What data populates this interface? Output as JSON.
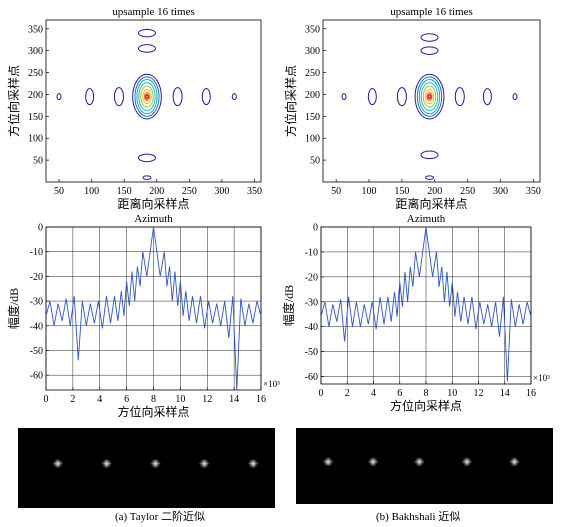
{
  "figure": {
    "captions": [
      "(a) Taylor 二阶近似",
      "(b) Bakhshali 近似"
    ]
  },
  "chart_data": [
    {
      "type": "contour",
      "panel": "a-contour",
      "title": "upsample 16 times",
      "xlabel": "距离向采样点",
      "ylabel": "方位向采样点",
      "xlim": [
        30,
        360
      ],
      "ylim": [
        0,
        370
      ],
      "xticks": [
        50,
        100,
        150,
        200,
        250,
        300,
        350
      ],
      "yticks": [
        50,
        100,
        150,
        200,
        250,
        300,
        350
      ],
      "grid": false,
      "peak": {
        "x": 185,
        "y": 195
      },
      "side_lobes_x": [
        50,
        97,
        142,
        232,
        276,
        319
      ],
      "side_lobes_y": [
        55,
        10,
        340,
        305
      ],
      "colors": [
        "#d62728",
        "#ff7f0e",
        "#e6c619",
        "#9acd32",
        "#17becf",
        "#1f77b4",
        "#1f1f9f"
      ]
    },
    {
      "type": "contour",
      "panel": "b-contour",
      "title": "upsample 16 times",
      "xlabel": "距离向采样点",
      "ylabel": "方位向采样点",
      "xlim": [
        30,
        360
      ],
      "ylim": [
        0,
        370
      ],
      "xticks": [
        50,
        100,
        150,
        200,
        250,
        300,
        350
      ],
      "yticks": [
        50,
        100,
        150,
        200,
        250,
        300,
        350
      ],
      "grid": false,
      "peak": {
        "x": 192,
        "y": 195
      },
      "side_lobes_x": [
        62,
        105,
        150,
        238,
        280,
        322
      ],
      "side_lobes_y": [
        62,
        10,
        330,
        300
      ],
      "colors": [
        "#d62728",
        "#ff7f0e",
        "#e6c619",
        "#9acd32",
        "#17becf",
        "#1f77b4",
        "#1f1f9f"
      ]
    },
    {
      "type": "line",
      "panel": "a-profile",
      "title": "Azimuth",
      "xlabel": "方位向采样点",
      "ylabel": "幅度/dB",
      "x_multiplier": "×10³",
      "xlim": [
        0,
        16
      ],
      "ylim": [
        -66,
        0
      ],
      "xticks": [
        0,
        2,
        4,
        6,
        8,
        10,
        12,
        14,
        16
      ],
      "yticks": [
        0,
        -10,
        -20,
        -30,
        -40,
        -50,
        -60
      ],
      "grid": true,
      "line_color": "#2f55c6",
      "mainlobe_center": 8,
      "sidelobe_peaks": [
        {
          "x": 0.3,
          "y": -30
        },
        {
          "x": 0.9,
          "y": -31
        },
        {
          "x": 1.5,
          "y": -29
        },
        {
          "x": 2.1,
          "y": -28
        },
        {
          "x": 2.7,
          "y": -30
        },
        {
          "x": 3.3,
          "y": -31
        },
        {
          "x": 3.9,
          "y": -30
        },
        {
          "x": 4.5,
          "y": -28
        },
        {
          "x": 5.1,
          "y": -28
        },
        {
          "x": 5.6,
          "y": -26
        },
        {
          "x": 6.0,
          "y": -22
        },
        {
          "x": 6.4,
          "y": -18
        },
        {
          "x": 6.8,
          "y": -16
        },
        {
          "x": 7.2,
          "y": -10
        },
        {
          "x": 8.0,
          "y": 0
        },
        {
          "x": 8.8,
          "y": -10
        },
        {
          "x": 9.2,
          "y": -16
        },
        {
          "x": 9.6,
          "y": -18
        },
        {
          "x": 10.0,
          "y": -22
        },
        {
          "x": 10.4,
          "y": -26
        },
        {
          "x": 10.9,
          "y": -28
        },
        {
          "x": 11.5,
          "y": -28
        },
        {
          "x": 12.1,
          "y": -30
        },
        {
          "x": 12.7,
          "y": -31
        },
        {
          "x": 13.3,
          "y": -30
        },
        {
          "x": 13.9,
          "y": -28
        },
        {
          "x": 14.5,
          "y": -29
        },
        {
          "x": 15.1,
          "y": -31
        },
        {
          "x": 15.7,
          "y": -30
        }
      ],
      "nulls": [
        {
          "x": 0.6,
          "y": -40
        },
        {
          "x": 1.2,
          "y": -38
        },
        {
          "x": 1.8,
          "y": -40
        },
        {
          "x": 2.4,
          "y": -54
        },
        {
          "x": 3.0,
          "y": -40
        },
        {
          "x": 3.6,
          "y": -39
        },
        {
          "x": 4.2,
          "y": -41
        },
        {
          "x": 4.8,
          "y": -39
        },
        {
          "x": 5.35,
          "y": -38
        },
        {
          "x": 5.8,
          "y": -36
        },
        {
          "x": 6.2,
          "y": -32
        },
        {
          "x": 6.6,
          "y": -30
        },
        {
          "x": 7.0,
          "y": -24
        },
        {
          "x": 7.5,
          "y": -20
        },
        {
          "x": 8.5,
          "y": -20
        },
        {
          "x": 9.0,
          "y": -24
        },
        {
          "x": 9.4,
          "y": -30
        },
        {
          "x": 9.8,
          "y": -32
        },
        {
          "x": 10.2,
          "y": -36
        },
        {
          "x": 10.65,
          "y": -38
        },
        {
          "x": 11.2,
          "y": -39
        },
        {
          "x": 11.8,
          "y": -41
        },
        {
          "x": 12.4,
          "y": -39
        },
        {
          "x": 13.0,
          "y": -40
        },
        {
          "x": 13.6,
          "y": -45
        },
        {
          "x": 14.2,
          "y": -66
        },
        {
          "x": 14.8,
          "y": -40
        },
        {
          "x": 15.4,
          "y": -39
        },
        {
          "x": 16.0,
          "y": -36
        }
      ]
    },
    {
      "type": "line",
      "panel": "b-profile",
      "title": "Azimuth",
      "xlabel": "方位向采样点",
      "ylabel": "幅度/dB",
      "x_multiplier": "×10³",
      "xlim": [
        0,
        16
      ],
      "ylim": [
        -63,
        0
      ],
      "xticks": [
        0,
        2,
        4,
        6,
        8,
        10,
        12,
        14,
        16
      ],
      "yticks": [
        0,
        -10,
        -20,
        -30,
        -40,
        -50,
        -60
      ],
      "grid": true,
      "line_color": "#2f55c6",
      "mainlobe_center": 8,
      "sidelobe_peaks": [
        {
          "x": 0.3,
          "y": -30
        },
        {
          "x": 0.9,
          "y": -31
        },
        {
          "x": 1.5,
          "y": -29
        },
        {
          "x": 2.1,
          "y": -28
        },
        {
          "x": 2.7,
          "y": -30
        },
        {
          "x": 3.3,
          "y": -31
        },
        {
          "x": 3.9,
          "y": -30
        },
        {
          "x": 4.5,
          "y": -28
        },
        {
          "x": 5.1,
          "y": -28
        },
        {
          "x": 5.6,
          "y": -26
        },
        {
          "x": 6.0,
          "y": -22
        },
        {
          "x": 6.4,
          "y": -18
        },
        {
          "x": 6.8,
          "y": -16
        },
        {
          "x": 7.2,
          "y": -10
        },
        {
          "x": 8.0,
          "y": 0
        },
        {
          "x": 8.8,
          "y": -10
        },
        {
          "x": 9.2,
          "y": -16
        },
        {
          "x": 9.6,
          "y": -18
        },
        {
          "x": 10.0,
          "y": -22
        },
        {
          "x": 10.4,
          "y": -26
        },
        {
          "x": 10.9,
          "y": -28
        },
        {
          "x": 11.5,
          "y": -28
        },
        {
          "x": 12.1,
          "y": -30
        },
        {
          "x": 12.7,
          "y": -31
        },
        {
          "x": 13.3,
          "y": -30
        },
        {
          "x": 13.9,
          "y": -28
        },
        {
          "x": 14.5,
          "y": -29
        },
        {
          "x": 15.1,
          "y": -31
        },
        {
          "x": 15.7,
          "y": -30
        }
      ],
      "nulls": [
        {
          "x": 0.6,
          "y": -40
        },
        {
          "x": 1.2,
          "y": -38
        },
        {
          "x": 1.8,
          "y": -46
        },
        {
          "x": 2.4,
          "y": -40
        },
        {
          "x": 3.0,
          "y": -40
        },
        {
          "x": 3.6,
          "y": -39
        },
        {
          "x": 4.2,
          "y": -41
        },
        {
          "x": 4.8,
          "y": -39
        },
        {
          "x": 5.35,
          "y": -38
        },
        {
          "x": 5.8,
          "y": -36
        },
        {
          "x": 6.2,
          "y": -32
        },
        {
          "x": 6.6,
          "y": -30
        },
        {
          "x": 7.0,
          "y": -24
        },
        {
          "x": 7.5,
          "y": -20
        },
        {
          "x": 8.5,
          "y": -20
        },
        {
          "x": 9.0,
          "y": -24
        },
        {
          "x": 9.4,
          "y": -30
        },
        {
          "x": 9.8,
          "y": -32
        },
        {
          "x": 10.2,
          "y": -36
        },
        {
          "x": 10.65,
          "y": -38
        },
        {
          "x": 11.2,
          "y": -39
        },
        {
          "x": 11.8,
          "y": -41
        },
        {
          "x": 12.4,
          "y": -39
        },
        {
          "x": 13.0,
          "y": -40
        },
        {
          "x": 13.6,
          "y": -44
        },
        {
          "x": 14.2,
          "y": -62
        },
        {
          "x": 14.8,
          "y": -40
        },
        {
          "x": 15.4,
          "y": -39
        },
        {
          "x": 16.0,
          "y": -36
        }
      ]
    },
    {
      "type": "image",
      "panel": "a-image",
      "background": "#000000",
      "point_targets": 5,
      "target_positions": [
        0.155,
        0.345,
        0.535,
        0.725,
        0.915
      ]
    },
    {
      "type": "image",
      "panel": "b-image",
      "background": "#000000",
      "point_targets": 5,
      "target_positions": [
        0.125,
        0.3,
        0.48,
        0.665,
        0.85
      ]
    }
  ]
}
